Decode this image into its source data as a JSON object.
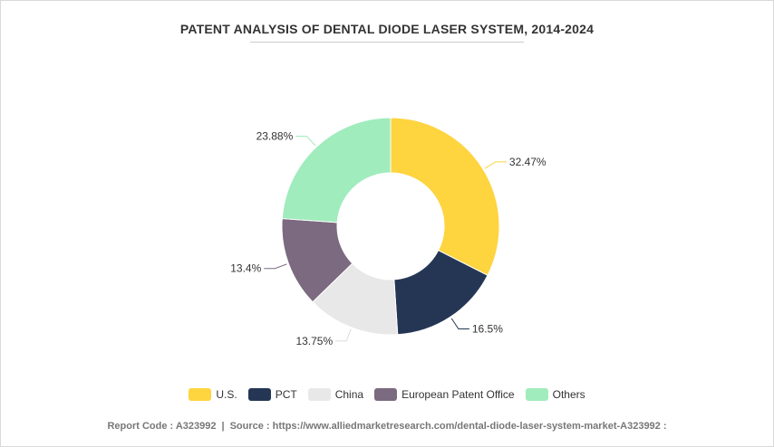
{
  "chart_data": {
    "type": "pie",
    "title": "PATENT ANALYSIS OF DENTAL DIODE LASER SYSTEM, 2014-2024",
    "donut": true,
    "categories": [
      "U.S.",
      "PCT",
      "China",
      "European Patent Office",
      "Others"
    ],
    "values": [
      32.47,
      16.5,
      13.75,
      13.4,
      23.88
    ],
    "value_labels": [
      "32.47%",
      "16.5%",
      "13.75%",
      "13.4%",
      "23.88%"
    ],
    "colors": [
      "#fed43f",
      "#253655",
      "#e8e8e8",
      "#7b6a80",
      "#a0ecbd"
    ],
    "legend_position": "bottom"
  },
  "footer": {
    "report_code": "Report Code : A323992",
    "separator": "|",
    "source": "Source : https://www.alliedmarketresearch.com/dental-diode-laser-system-market-A323992 :"
  }
}
